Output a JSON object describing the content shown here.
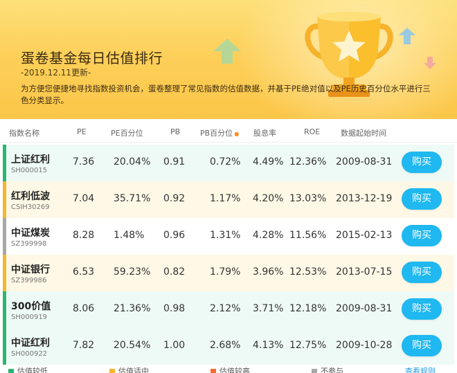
{
  "banner": {
    "title": "蛋卷基金每日估值排行",
    "date": "-2019.12.11更新-",
    "description": "为方便您便捷地寻找指数投资机会，蛋卷整理了常见指数的估值数据，并基于PE绝对值以及PE历史百分位水平进行三色分类显示。"
  },
  "columns": {
    "name": "指数名称",
    "pe": "PE",
    "pe_pct": "PE百分位",
    "pb": "PB",
    "pb_pct": "PB百分位",
    "dividend": "股息率",
    "roe": "ROE",
    "start_date": "数据起始时间"
  },
  "colors": {
    "low": "#2bb673",
    "mid": "#f7b52c",
    "high": "#f26b2d",
    "none": "#a7a7a7",
    "buy_button": "#1fb8f0"
  },
  "rows": [
    {
      "name": "上证红利",
      "code": "SH000015",
      "pe": "7.36",
      "pe_pct": "20.04%",
      "pb": "0.91",
      "pb_pct": "0.72%",
      "dividend": "4.49%",
      "roe": "12.36%",
      "start": "2009-08-31",
      "buy": "购买",
      "status": "low"
    },
    {
      "name": "红利低波",
      "code": "CSIH30269",
      "pe": "7.04",
      "pe_pct": "35.71%",
      "pb": "0.92",
      "pb_pct": "1.17%",
      "dividend": "4.20%",
      "roe": "13.03%",
      "start": "2013-12-19",
      "buy": "购买",
      "status": "mid"
    },
    {
      "name": "中证煤炭",
      "code": "SZ399998",
      "pe": "8.28",
      "pe_pct": "1.48%",
      "pb": "0.96",
      "pb_pct": "1.31%",
      "dividend": "4.28%",
      "roe": "11.56%",
      "start": "2015-02-13",
      "buy": "购买",
      "status": "none"
    },
    {
      "name": "中证银行",
      "code": "SZ399986",
      "pe": "6.53",
      "pe_pct": "59.23%",
      "pb": "0.82",
      "pb_pct": "1.79%",
      "dividend": "3.96%",
      "roe": "12.53%",
      "start": "2013-07-15",
      "buy": "购买",
      "status": "mid"
    },
    {
      "name": "300价值",
      "code": "SH000919",
      "pe": "8.06",
      "pe_pct": "21.36%",
      "pb": "0.98",
      "pb_pct": "2.12%",
      "dividend": "3.71%",
      "roe": "12.18%",
      "start": "2009-08-31",
      "buy": "购买",
      "status": "low"
    },
    {
      "name": "中证红利",
      "code": "SH000922",
      "pe": "7.82",
      "pe_pct": "20.54%",
      "pb": "1.00",
      "pb_pct": "2.68%",
      "dividend": "4.13%",
      "roe": "12.75%",
      "start": "2009-10-28",
      "buy": "购买",
      "status": "low"
    }
  ],
  "legend": {
    "low": "估值较低",
    "mid": "估值适中",
    "high": "估值较高",
    "none": "不参与",
    "rules": "查看规则"
  }
}
